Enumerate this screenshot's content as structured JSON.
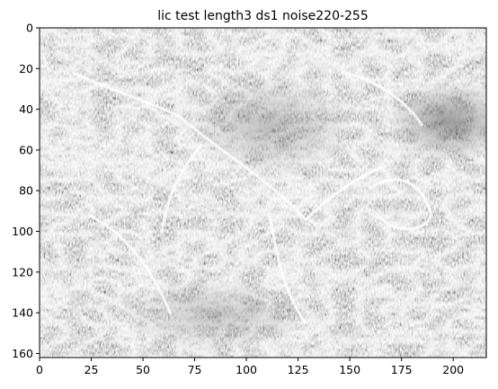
{
  "chart_data": {
    "type": "heatmap",
    "title": "lic test length3 ds1 noise220-255",
    "xlabel": "",
    "ylabel": "",
    "colormap": "gray",
    "image_width": 216,
    "image_height": 162,
    "xlim": [
      0,
      216
    ],
    "ylim": [
      162,
      0
    ],
    "x_ticks": [
      "0",
      "25",
      "50",
      "75",
      "100",
      "125",
      "150",
      "175",
      "200"
    ],
    "y_ticks": [
      "0",
      "20",
      "40",
      "60",
      "80",
      "100",
      "120",
      "140",
      "160"
    ],
    "x_tick_values": [
      0,
      25,
      50,
      75,
      100,
      125,
      150,
      175,
      200
    ],
    "y_tick_values": [
      0,
      20,
      40,
      60,
      80,
      100,
      120,
      140,
      160
    ],
    "grid": false,
    "legend": "none",
    "colors": {
      "background": "#ffffff",
      "axis": "#000000",
      "dark": "#3a3a3a",
      "light": "#f2f2f2"
    }
  }
}
